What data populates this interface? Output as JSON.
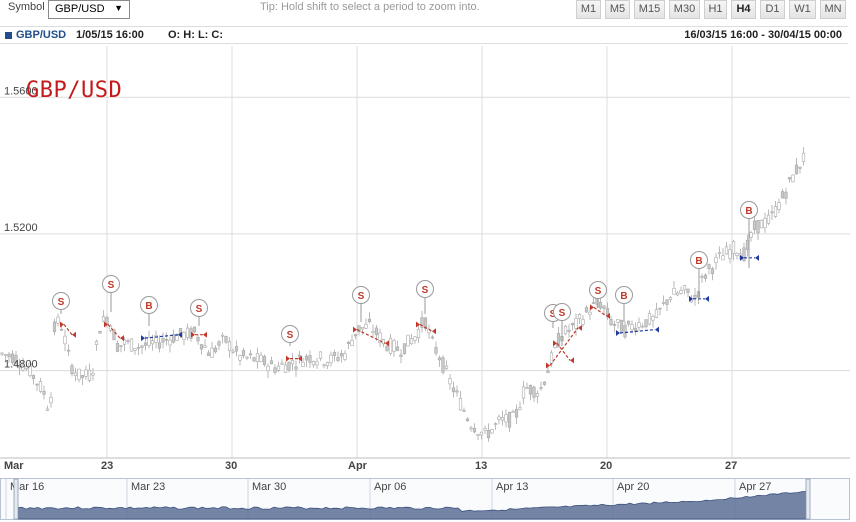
{
  "toolbar": {
    "symbol_label": "Symbol",
    "symbol_value": "GBP/USD",
    "tip": "Tip: Hold shift to select a period to zoom into.",
    "timeframes": [
      "M1",
      "M5",
      "M15",
      "M30",
      "H1",
      "H4",
      "D1",
      "W1",
      "MN"
    ],
    "active_timeframe": "H4"
  },
  "info": {
    "symbol": "GBP/USD",
    "datetime": "1/05/15 16:00",
    "ohlc": "O: H: L: C:",
    "range": "16/03/15 16:00 - 30/04/15 00:00"
  },
  "chart_data": {
    "type": "candlestick",
    "title": "GBP/USD",
    "y_ticks": [
      "1.5600",
      "1.5200",
      "1.4800"
    ],
    "y_range": [
      1.455,
      1.575
    ],
    "x_ticks": [
      "Mar",
      "23",
      "30",
      "Apr",
      "13",
      "20",
      "27"
    ],
    "grid": true,
    "markers": [
      {
        "label": "S",
        "color": "#c0392b"
      },
      {
        "label": "S",
        "color": "#c0392b"
      },
      {
        "label": "B",
        "color": "#c0392b"
      },
      {
        "label": "S",
        "color": "#c0392b"
      },
      {
        "label": "S",
        "color": "#c0392b"
      },
      {
        "label": "S",
        "color": "#c0392b"
      },
      {
        "label": "S",
        "color": "#c0392b"
      },
      {
        "label": "S",
        "color": "#c0392b"
      },
      {
        "label": "S",
        "color": "#c0392b"
      },
      {
        "label": "S",
        "color": "#c0392b"
      },
      {
        "label": "B",
        "color": "#c0392b"
      },
      {
        "label": "B",
        "color": "#c0392b"
      },
      {
        "label": "B",
        "color": "#c0392b"
      }
    ]
  },
  "navigator": {
    "labels": [
      "Mar 16",
      "Mar 23",
      "Mar 30",
      "Apr 06",
      "Apr 13",
      "Apr 20",
      "Apr 27"
    ]
  },
  "colors": {
    "title": "#c41a1a",
    "sell": "#c0392b",
    "buy_arrow": "#1f3aa0",
    "candle": "#c8c8c8",
    "navigator_fill": "#5a6f95"
  }
}
